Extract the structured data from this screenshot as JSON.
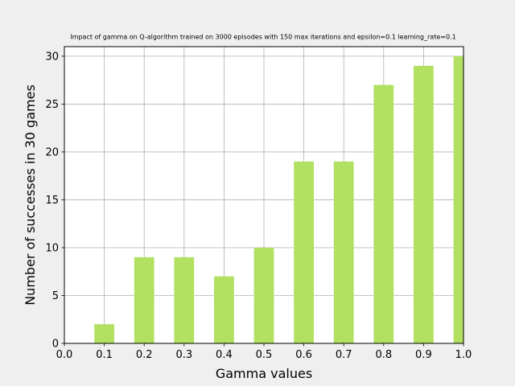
{
  "chart_data": {
    "type": "bar",
    "title": "Impact of gamma on Q-algorithm trained on 3000 episodes with 150 max iterations and epsilon=0.1 learning_rate=0.1",
    "xlabel": "Gamma values",
    "ylabel": "Number of successes in 30 games",
    "x": [
      0.1,
      0.2,
      0.3,
      0.4,
      0.5,
      0.6,
      0.7,
      0.8,
      0.9,
      1.0
    ],
    "values": [
      2,
      9,
      9,
      7,
      10,
      19,
      19,
      27,
      29,
      30
    ],
    "bar_width": 0.05,
    "xlim": [
      0.0,
      1.0
    ],
    "ylim": [
      0,
      31
    ],
    "xticks": [
      "0.0",
      "0.1",
      "0.2",
      "0.3",
      "0.4",
      "0.5",
      "0.6",
      "0.7",
      "0.8",
      "0.9",
      "1.0"
    ],
    "yticks": [
      "0",
      "5",
      "10",
      "15",
      "20",
      "25",
      "30"
    ],
    "grid": true,
    "legend": "none",
    "colors": {
      "bar": "#b2e061",
      "grid": "#b0b0b0",
      "figure_background": "#efefef",
      "axes_background": "#ffffff"
    }
  }
}
